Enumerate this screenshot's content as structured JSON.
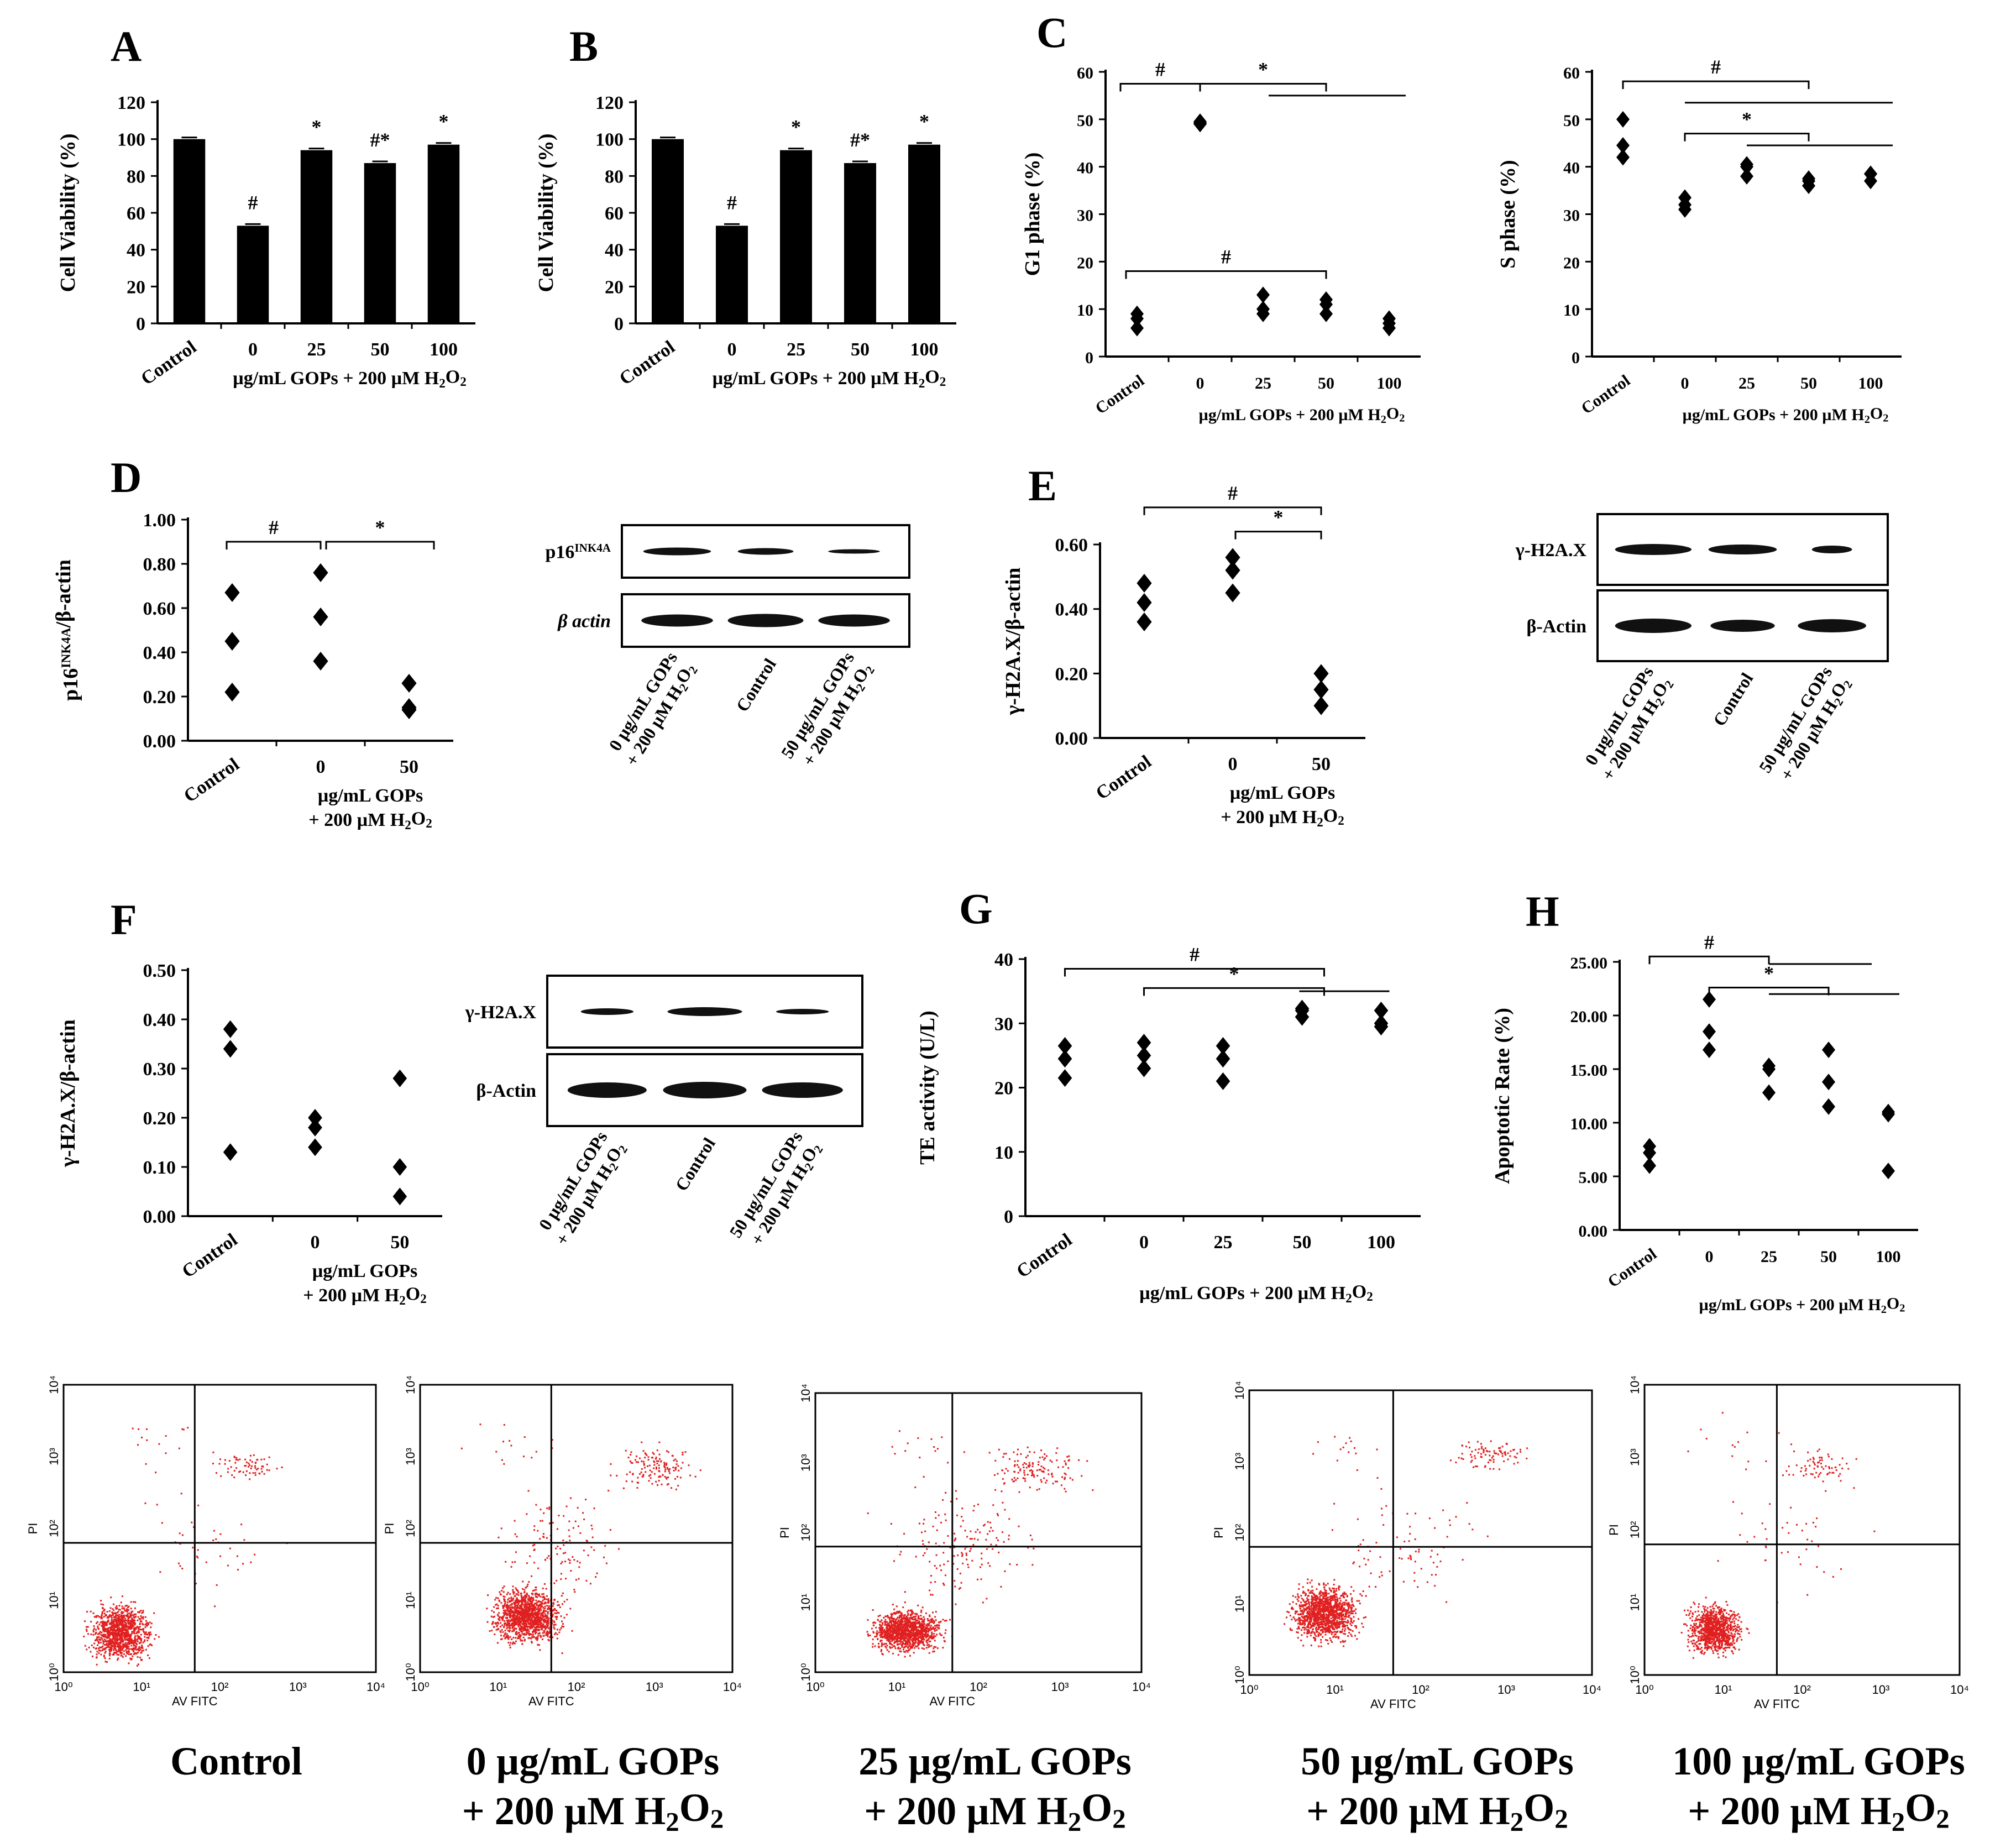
{
  "chart_data": [
    {
      "id": "A",
      "type": "bar",
      "panel_label": "A",
      "ylabel": "Cell Viability (%)",
      "xlabel": "µg/mL GOPs + 200 µM H₂O₂",
      "categories": [
        "Control",
        "0",
        "25",
        "50",
        "100"
      ],
      "values": [
        100,
        53,
        94,
        87,
        97
      ],
      "ylim": [
        0,
        120
      ],
      "yticks": [
        "0",
        "20",
        "40",
        "60",
        "80",
        "100",
        "120"
      ],
      "annotations": [
        "",
        "#",
        "*",
        "#*",
        "*"
      ]
    },
    {
      "id": "B",
      "type": "bar",
      "panel_label": "B",
      "ylabel": "Cell Viability (%)",
      "xlabel": "µg/mL GOPs + 200 µM H₂O₂",
      "categories": [
        "Control",
        "0",
        "25",
        "50",
        "100"
      ],
      "values": [
        100,
        53,
        94,
        87,
        97
      ],
      "ylim": [
        0,
        120
      ],
      "yticks": [
        "0",
        "20",
        "40",
        "60",
        "80",
        "100",
        "120"
      ],
      "annotations": [
        "",
        "#",
        "*",
        "#*",
        "*"
      ]
    },
    {
      "id": "C1",
      "type": "scatter",
      "panel_label": "C",
      "ylabel": "G1 phase  (%)",
      "xlabel": "µg/mL GOPs + 200 µM H₂O₂",
      "categories": [
        "Control",
        "0",
        "25",
        "50",
        "100"
      ],
      "points": [
        [
          6,
          8,
          9
        ],
        [
          49,
          49.2,
          49.5
        ],
        [
          9,
          10,
          13
        ],
        [
          9,
          11,
          12
        ],
        [
          6,
          7,
          8
        ]
      ],
      "ylim": [
        0,
        60
      ],
      "yticks": [
        "0",
        "10",
        "20",
        "30",
        "40",
        "50",
        "60"
      ],
      "sig_labels": [
        "#",
        "*",
        "#"
      ]
    },
    {
      "id": "C2",
      "type": "scatter",
      "ylabel": "S phase  (%)",
      "xlabel": "µg/mL GOPs + 200 µM H₂O₂",
      "categories": [
        "Control",
        "0",
        "25",
        "50",
        "100"
      ],
      "points": [
        [
          42,
          44.5,
          50
        ],
        [
          31,
          32,
          33.5
        ],
        [
          38,
          40,
          40.5
        ],
        [
          36,
          37,
          37.5
        ],
        [
          37,
          38.5,
          38.5
        ]
      ],
      "ylim": [
        0,
        60
      ],
      "yticks": [
        "0",
        "10",
        "20",
        "30",
        "40",
        "50",
        "60"
      ],
      "sig_labels": [
        "#",
        "*"
      ]
    },
    {
      "id": "D",
      "type": "scatter",
      "panel_label": "D",
      "ylabel": "p16INK4A/β-actin",
      "xlabel_lines": [
        "µg/mL GOPs",
        "+ 200 µM H₂O₂"
      ],
      "categories": [
        "Control",
        "0",
        "50"
      ],
      "points": [
        [
          0.22,
          0.45,
          0.67
        ],
        [
          0.36,
          0.56,
          0.76
        ],
        [
          0.14,
          0.15,
          0.26
        ]
      ],
      "ylim": [
        0,
        1.0
      ],
      "yticks": [
        "0.00",
        "0.20",
        "0.40",
        "0.60",
        "0.80",
        "1.00"
      ],
      "sig_labels": [
        "#",
        "*"
      ]
    },
    {
      "id": "E",
      "type": "scatter",
      "panel_label": "E",
      "ylabel": "γ-H2A.X/β-actin",
      "xlabel_lines": [
        "µg/mL GOPs",
        "+ 200 µM H₂O₂"
      ],
      "categories": [
        "Control",
        "0",
        "50"
      ],
      "points": [
        [
          0.36,
          0.42,
          0.48
        ],
        [
          0.45,
          0.52,
          0.56
        ],
        [
          0.1,
          0.15,
          0.2
        ]
      ],
      "ylim": [
        0,
        0.6
      ],
      "yticks": [
        "0.00",
        "0.20",
        "0.40",
        "0.60"
      ],
      "sig_labels": [
        "#",
        "*"
      ]
    },
    {
      "id": "F",
      "type": "scatter",
      "panel_label": "F",
      "ylabel": "γ-H2A.X/β-actin",
      "xlabel_lines": [
        "µg/mL GOPs",
        "+ 200 µM H₂O₂"
      ],
      "categories": [
        "Control",
        "0",
        "50"
      ],
      "points": [
        [
          0.13,
          0.34,
          0.38
        ],
        [
          0.14,
          0.18,
          0.2
        ],
        [
          0.04,
          0.1,
          0.28
        ]
      ],
      "ylim": [
        0,
        0.5
      ],
      "yticks": [
        "0.00",
        "0.10",
        "0.20",
        "0.30",
        "0.40",
        "0.50"
      ]
    },
    {
      "id": "G",
      "type": "scatter",
      "panel_label": "G",
      "ylabel": "TE activity  (U/L)",
      "xlabel": "µg/mL GOPs + 200 µM H₂O₂",
      "categories": [
        "Control",
        "0",
        "25",
        "50",
        "100"
      ],
      "points": [
        [
          21.5,
          24.5,
          26.5
        ],
        [
          23,
          25,
          27
        ],
        [
          21,
          24.5,
          26.5
        ],
        [
          31,
          32,
          32.3
        ],
        [
          29.5,
          30,
          32
        ]
      ],
      "ylim": [
        0,
        40
      ],
      "yticks": [
        "0",
        "10",
        "20",
        "30",
        "40"
      ],
      "sig_labels": [
        "#",
        "*"
      ]
    },
    {
      "id": "H",
      "type": "scatter",
      "panel_label": "H",
      "ylabel": "Apoptotic Rate (%)",
      "xlabel": "µg/mL GOPs + 200 µM H₂O₂",
      "categories": [
        "Control",
        "0",
        "25",
        "50",
        "100"
      ],
      "points": [
        [
          6,
          7.2,
          7.8
        ],
        [
          16.8,
          18.5,
          21.5
        ],
        [
          12.8,
          15,
          15.3
        ],
        [
          11.5,
          13.8,
          16.8
        ],
        [
          5.5,
          10.8,
          11
        ]
      ],
      "ylim": [
        0,
        25
      ],
      "yticks": [
        "0.00",
        "5.00",
        "10.00",
        "15.00",
        "20.00",
        "25.00"
      ],
      "sig_labels": [
        "#",
        "*"
      ]
    }
  ],
  "blots": {
    "D": {
      "rows": [
        "p16INK4A",
        "β actin"
      ],
      "lanes": [
        "0 µg/mL GOPs + 200 µM H₂O₂",
        "Control",
        "50 µg/mL GOPs + 200 µM H₂O₂"
      ]
    },
    "E": {
      "rows": [
        "γ-H2A.X",
        "β-Actin"
      ],
      "lanes": [
        "0 µg/mL GOPs + 200 µM H₂O₂",
        "Control",
        "50 µg/mL GOPs + 200 µM H₂O₂"
      ]
    },
    "F": {
      "rows": [
        "γ-H2A.X",
        "β-Actin"
      ],
      "lanes": [
        "0 µg/mL GOPs + 200 µM H₂O₂",
        "Control",
        "50 µg/mL GOPs + 200 µM H₂O₂"
      ]
    }
  },
  "flow": {
    "xaxis_label": "AV FITC",
    "yaxis_label": "PI",
    "ticks": [
      "10⁰",
      "10¹",
      "10²",
      "10³",
      "10⁴"
    ],
    "dot_color": "#e02020",
    "captions": [
      [
        "Control",
        ""
      ],
      [
        "0 µg/mL GOPs",
        "+ 200 µM H₂O₂"
      ],
      [
        "25 µg/mL GOPs",
        "+ 200 µM H₂O₂"
      ],
      [
        "50 µg/mL GOPs",
        "+ 200 µM H₂O₂"
      ],
      [
        "100 µg/mL GOPs",
        "+ 200 µM H₂O₂"
      ]
    ]
  }
}
